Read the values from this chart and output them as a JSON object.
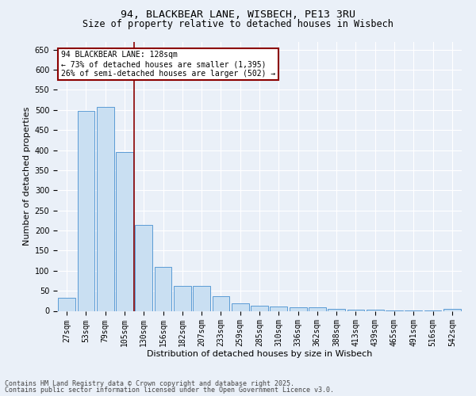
{
  "title1": "94, BLACKBEAR LANE, WISBECH, PE13 3RU",
  "title2": "Size of property relative to detached houses in Wisbech",
  "xlabel": "Distribution of detached houses by size in Wisbech",
  "ylabel": "Number of detached properties",
  "categories": [
    "27sqm",
    "53sqm",
    "79sqm",
    "105sqm",
    "130sqm",
    "156sqm",
    "182sqm",
    "207sqm",
    "233sqm",
    "259sqm",
    "285sqm",
    "310sqm",
    "336sqm",
    "362sqm",
    "388sqm",
    "413sqm",
    "439sqm",
    "465sqm",
    "491sqm",
    "516sqm",
    "542sqm"
  ],
  "values": [
    32,
    497,
    507,
    395,
    213,
    110,
    62,
    62,
    37,
    18,
    12,
    10,
    8,
    8,
    5,
    3,
    2,
    1,
    1,
    1,
    4
  ],
  "bar_color": "#c9dff2",
  "bar_edge_color": "#5b9bd5",
  "vline_x_idx": 4,
  "vline_color": "#8b0000",
  "annotation_line1": "94 BLACKBEAR LANE: 128sqm",
  "annotation_line2": "← 73% of detached houses are smaller (1,395)",
  "annotation_line3": "26% of semi-detached houses are larger (502) →",
  "annotation_box_color": "#ffffff",
  "annotation_box_edge": "#8b0000",
  "ylim": [
    0,
    670
  ],
  "yticks": [
    0,
    50,
    100,
    150,
    200,
    250,
    300,
    350,
    400,
    450,
    500,
    550,
    600,
    650
  ],
  "footer1": "Contains HM Land Registry data © Crown copyright and database right 2025.",
  "footer2": "Contains public sector information licensed under the Open Government Licence v3.0.",
  "bg_color": "#eaf0f8",
  "plot_bg_color": "#eaf0f8",
  "grid_color": "#ffffff",
  "title1_fontsize": 9.5,
  "title2_fontsize": 8.5,
  "axis_label_fontsize": 8,
  "tick_fontsize": 7,
  "annot_fontsize": 7,
  "footer_fontsize": 6
}
